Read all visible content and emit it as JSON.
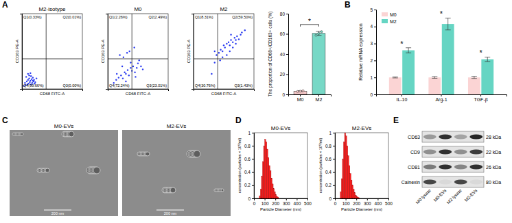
{
  "panel_labels": [
    "A",
    "B",
    "C",
    "D",
    "E"
  ],
  "chart_data": [
    {
      "type": "scatter",
      "title": "M2-isotype",
      "x_label": "CD68 FITC-A",
      "y_label": "CD163 PE-A",
      "xlim": [
        0,
        100
      ],
      "ylim": [
        0,
        100
      ],
      "tick_labels": false,
      "gate_x": 40,
      "gate_y": 40,
      "quadrant_labels": [
        "Q1(0.33%)",
        "Q2(0.01%)",
        "Q3(0.00%)",
        "Q4(99.66%)"
      ],
      "color": "#2b3cf0",
      "marker": "circle",
      "x": [
        3,
        5,
        6,
        8,
        9,
        10,
        11,
        12,
        13,
        14,
        15,
        16,
        17,
        18,
        19,
        20,
        22,
        24,
        7,
        12,
        15,
        18,
        10,
        14,
        21
      ],
      "y": [
        4,
        8,
        5,
        10,
        6,
        12,
        7,
        14,
        9,
        11,
        6,
        13,
        8,
        15,
        10,
        12,
        9,
        14,
        16,
        18,
        17,
        11,
        20,
        21,
        7
      ]
    },
    {
      "type": "scatter",
      "title": "M0",
      "x_label": "CD68 FITC-A",
      "y_label": "CD163 PE-A",
      "xlim": [
        0,
        100
      ],
      "ylim": [
        0,
        100
      ],
      "tick_labels": false,
      "gate_x": 40,
      "gate_y": 40,
      "quadrant_labels": [
        "Q1(2.26%)",
        "Q2(2.49%)",
        "Q3(23.01%)",
        "Q4(72.24%)"
      ],
      "color": "#2b3cf0",
      "marker": "circle",
      "x": [
        10,
        14,
        18,
        22,
        25,
        28,
        30,
        33,
        35,
        38,
        40,
        42,
        45,
        48,
        50,
        55,
        20,
        26,
        32,
        36,
        44,
        52,
        58,
        30,
        24,
        38,
        15,
        46
      ],
      "y": [
        8,
        12,
        15,
        18,
        14,
        22,
        20,
        25,
        18,
        28,
        24,
        30,
        22,
        28,
        34,
        30,
        45,
        42,
        48,
        50,
        55,
        38,
        26,
        10,
        30,
        35,
        20,
        16
      ]
    },
    {
      "type": "scatter",
      "title": "M2",
      "x_label": "CD68 FITC-A",
      "y_label": "CD163 PE-A",
      "xlim": [
        0,
        100
      ],
      "ylim": [
        0,
        100
      ],
      "tick_labels": false,
      "gate_x": 40,
      "gate_y": 40,
      "quadrant_labels": [
        "Q1(8.31%)",
        "Q2(59.50%)",
        "Q3(1.43%)",
        "Q4(30.76%)"
      ],
      "color": "#2b3cf0",
      "marker": "circle",
      "x": [
        30,
        35,
        38,
        42,
        45,
        48,
        50,
        52,
        55,
        58,
        60,
        62,
        65,
        68,
        70,
        72,
        75,
        78,
        80,
        55,
        60,
        65,
        70,
        48,
        35,
        44,
        85,
        62
      ],
      "y": [
        20,
        35,
        45,
        48,
        52,
        50,
        58,
        55,
        60,
        62,
        58,
        65,
        62,
        68,
        65,
        70,
        66,
        72,
        75,
        45,
        50,
        55,
        60,
        42,
        50,
        38,
        78,
        72
      ]
    },
    {
      "type": "bar",
      "y_label": "The proportion of CD68+/CD163+ cells (%)",
      "categories": [
        "M0",
        "M2"
      ],
      "values": [
        3.2,
        60.5
      ],
      "errors": [
        0.5,
        2.0
      ],
      "points": [
        [
          2.8,
          3.2,
          3.6
        ],
        [
          58.6,
          60.4,
          62.2
        ]
      ],
      "colors": [
        "#f7c9c9",
        "#77d8c6"
      ],
      "ylim": [
        0,
        80
      ],
      "yticks": [
        0,
        20,
        40,
        60,
        80
      ],
      "annotations": [
        {
          "text": "*",
          "between": [
            "M0",
            "M2"
          ]
        }
      ]
    },
    {
      "type": "bar",
      "y_label": "Relative mRNA expression",
      "categories": [
        "IL-10",
        "Arg-1",
        "TGF-β"
      ],
      "series": [
        {
          "name": "M0",
          "color": "#fbd4d4",
          "values": [
            1,
            1,
            1
          ],
          "errors": [
            0.03,
            0.05,
            0.06
          ]
        },
        {
          "name": "M2",
          "color": "#66d5c3",
          "values": [
            2.6,
            4.15,
            2.07
          ],
          "errors": [
            0.15,
            0.35,
            0.13
          ]
        }
      ],
      "ylim": [
        0,
        5
      ],
      "yticks": [
        0,
        1,
        2,
        3,
        4,
        5
      ],
      "legend": "top-left",
      "annotations": [
        {
          "text": "*",
          "category": "IL-10"
        },
        {
          "text": "*",
          "category": "Arg-1"
        },
        {
          "text": "*",
          "category": "TGF-β"
        }
      ]
    },
    {
      "type": "histogram",
      "title": "M0-EVs",
      "x_label": "Particle Diameter (nm)",
      "y_label": "concentration (particles × 10⁶/ml)",
      "xlim": [
        0,
        500
      ],
      "xticks": [
        0,
        100,
        200,
        300,
        400,
        500
      ],
      "ylim": [
        0,
        1
      ],
      "yticks": [
        0,
        0.2,
        0.4,
        0.6,
        0.8,
        1
      ],
      "color": "#ff1a1a",
      "bins": [
        50,
        60,
        70,
        80,
        90,
        100,
        110,
        120,
        130,
        140,
        150,
        160,
        170,
        180,
        190,
        200,
        210,
        220,
        230
      ],
      "values": [
        0.04,
        0.14,
        0.34,
        0.56,
        0.8,
        0.9,
        0.86,
        0.75,
        0.62,
        0.5,
        0.42,
        0.31,
        0.22,
        0.15,
        0.1,
        0.06,
        0.03,
        0.02
      ]
    },
    {
      "type": "histogram",
      "title": "M2-EVs",
      "x_label": "Particle Diameter (nm)",
      "y_label": "concentration (particles × 10⁶/ml)",
      "xlim": [
        0,
        500
      ],
      "xticks": [
        0,
        100,
        200,
        300,
        400,
        500
      ],
      "ylim": [
        0,
        1
      ],
      "yticks": [
        0,
        0.2,
        0.4,
        0.6,
        0.8,
        1
      ],
      "color": "#ff1a1a",
      "bins": [
        50,
        60,
        70,
        80,
        90,
        100,
        110,
        120,
        130,
        140,
        150,
        160,
        170,
        180,
        190,
        200,
        210,
        220,
        230
      ],
      "values": [
        0.1,
        0.3,
        0.6,
        0.86,
        1.0,
        0.95,
        0.8,
        0.65,
        0.5,
        0.38,
        0.28,
        0.2,
        0.14,
        0.09,
        0.05,
        0.03,
        0.02,
        0.01
      ]
    }
  ],
  "images": {
    "titles": [
      "M0-EVs",
      "M2-EVs"
    ],
    "scale_bar": "200 nm"
  },
  "blot": {
    "lanes": [
      "M0 lysate",
      "M0-EVs",
      "M2 lysate",
      "M2-EVs"
    ],
    "rows": [
      {
        "name": "CD63",
        "size": "28 kDa",
        "intensities": [
          0.35,
          0.85,
          0.3,
          0.9
        ]
      },
      {
        "name": "CD9",
        "size": "22 kDa",
        "intensities": [
          0.4,
          0.85,
          0.4,
          0.8
        ]
      },
      {
        "name": "CD81",
        "size": "26 kDa",
        "intensities": [
          0.5,
          0.85,
          0.45,
          0.85
        ]
      },
      {
        "name": "Calnexin",
        "size": "80 kDa",
        "intensities": [
          0.75,
          0.05,
          0.75,
          0.05
        ]
      }
    ]
  }
}
